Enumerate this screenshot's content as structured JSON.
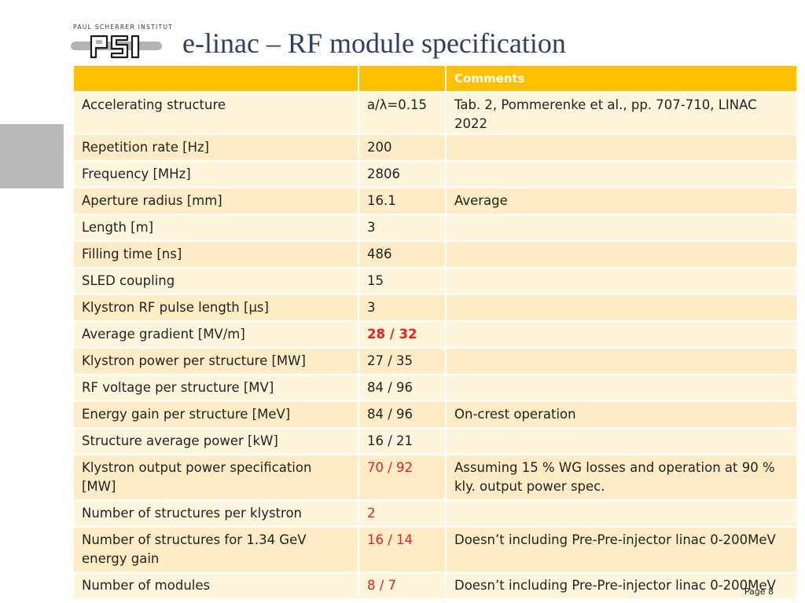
{
  "header": {
    "logo_text": "PAUL SCHERRER INSTITUT",
    "logo_mark": "PSI",
    "title": "e-linac – RF module specification"
  },
  "table": {
    "headers": [
      "",
      "",
      "Comments"
    ],
    "rows": [
      {
        "parameter": "Accelerating structure",
        "value": "a/λ=0.15",
        "comment": "Tab. 2, Pommerenke et al., pp. 707-710, LINAC 2022",
        "style": "normal"
      },
      {
        "parameter": "Repetition rate [Hz]",
        "value": "200",
        "comment": "",
        "style": "normal"
      },
      {
        "parameter": "Frequency [MHz]",
        "value": "2806",
        "comment": "",
        "style": "normal"
      },
      {
        "parameter": "Aperture radius [mm]",
        "value": "16.1",
        "comment": "Average",
        "style": "normal"
      },
      {
        "parameter": "Length [m]",
        "value": "3",
        "comment": "",
        "style": "normal"
      },
      {
        "parameter": "Filling time [ns]",
        "value": "486",
        "comment": "",
        "style": "normal"
      },
      {
        "parameter": "SLED coupling",
        "value": "15",
        "comment": "",
        "style": "normal"
      },
      {
        "parameter": "Klystron RF pulse length [µs]",
        "value": "3",
        "comment": "",
        "style": "normal"
      },
      {
        "parameter": "Average gradient [MV/m]",
        "value": "28 / 32",
        "comment": "",
        "style": "red-bold"
      },
      {
        "parameter": "Klystron power per structure [MW]",
        "value": "27 / 35",
        "comment": "",
        "style": "normal"
      },
      {
        "parameter": "RF voltage per structure [MV]",
        "value": "84 / 96",
        "comment": "",
        "style": "normal"
      },
      {
        "parameter": "Energy gain per structure [MeV]",
        "value": "84 / 96",
        "comment": "On-crest operation",
        "style": "normal"
      },
      {
        "parameter": "Structure average power [kW]",
        "value": "16 / 21",
        "comment": "",
        "style": "normal"
      },
      {
        "parameter": "Klystron output power specification [MW]",
        "value": "70 / 92",
        "comment": "Assuming 15 % WG losses and operation at 90 % kly. output power spec.",
        "style": "red"
      },
      {
        "parameter": "Number of structures per klystron",
        "value": "2",
        "comment": "",
        "style": "red"
      },
      {
        "parameter": "Number of structures for 1.34 GeV energy gain",
        "value": "16 / 14",
        "comment": "Doesn’t including Pre-Pre-injector linac 0-200MeV",
        "style": "red"
      },
      {
        "parameter": "Number of modules",
        "value": "8 / 7",
        "comment": "Doesn’t including Pre-Pre-injector linac 0-200MeV",
        "style": "red"
      }
    ]
  },
  "footer": {
    "page_label": "Page 8"
  },
  "colors": {
    "header_fill": "#ffc000",
    "row_fill_light": "#fff5dc",
    "row_fill_dark": "#fdecc5",
    "title_color": "#2d3f66",
    "highlight_red": "#e8201c",
    "side_box": "#b9b9b9"
  }
}
